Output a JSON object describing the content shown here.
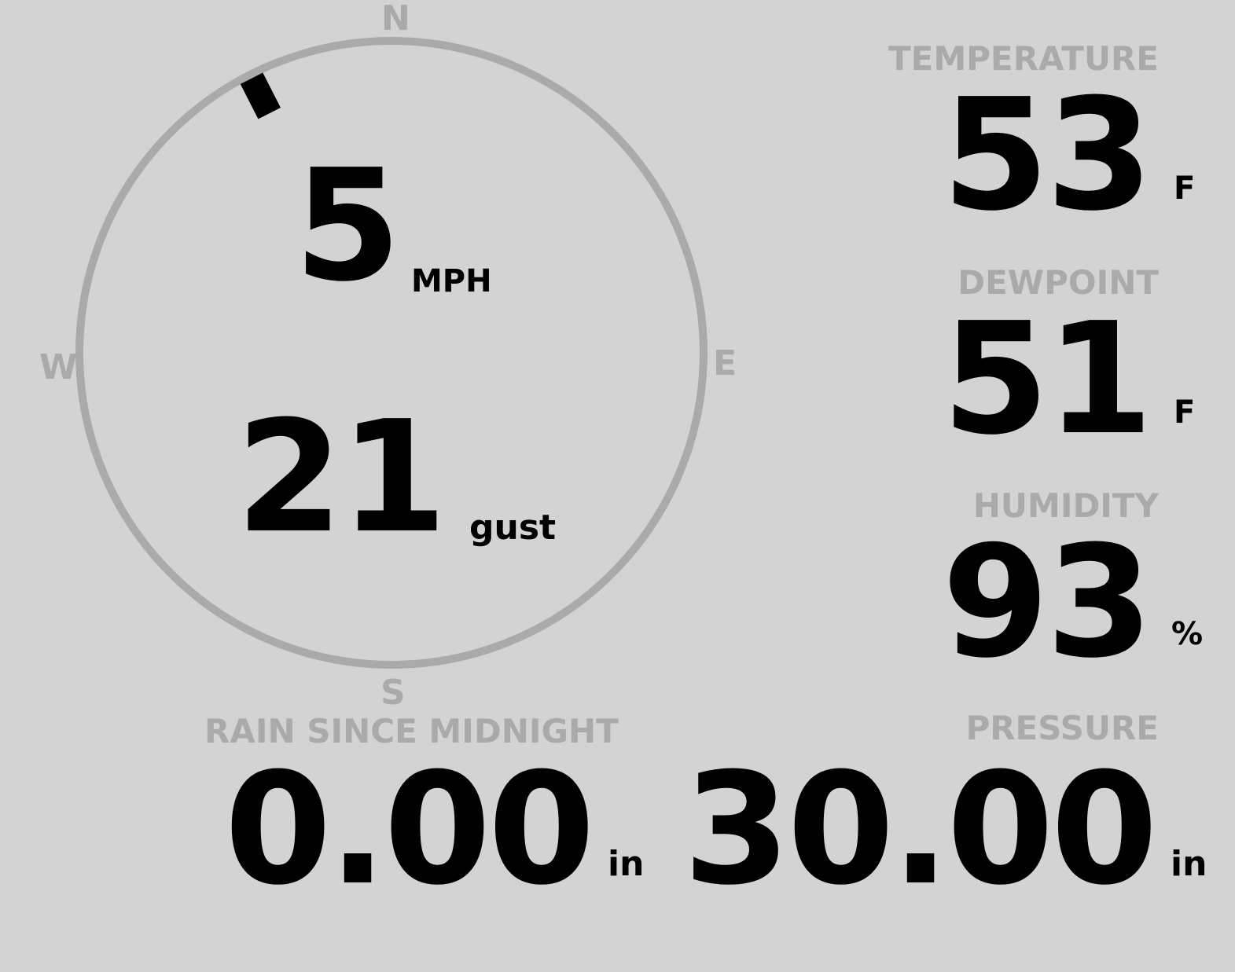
{
  "colors": {
    "background": "#d3d3d3",
    "label": "#aaaaaa",
    "value": "#000000",
    "dial": "#aaaaaa"
  },
  "wind": {
    "compass": {
      "north": "N",
      "south": "S",
      "east": "E",
      "west": "W"
    },
    "direction_deg": 333,
    "speed": "5",
    "speed_unit": "MPH",
    "gust": "21",
    "gust_unit": "gust"
  },
  "temperature": {
    "label": "TEMPERATURE",
    "value": "53",
    "unit": "F"
  },
  "dewpoint": {
    "label": "DEWPOINT",
    "value": "51",
    "unit": "F"
  },
  "humidity": {
    "label": "HUMIDITY",
    "value": "93",
    "unit": "%"
  },
  "rain": {
    "label": "RAIN SINCE MIDNIGHT",
    "value": "0.00",
    "unit": "in"
  },
  "pressure": {
    "label": "PRESSURE",
    "value": "30.00",
    "unit": "in"
  }
}
